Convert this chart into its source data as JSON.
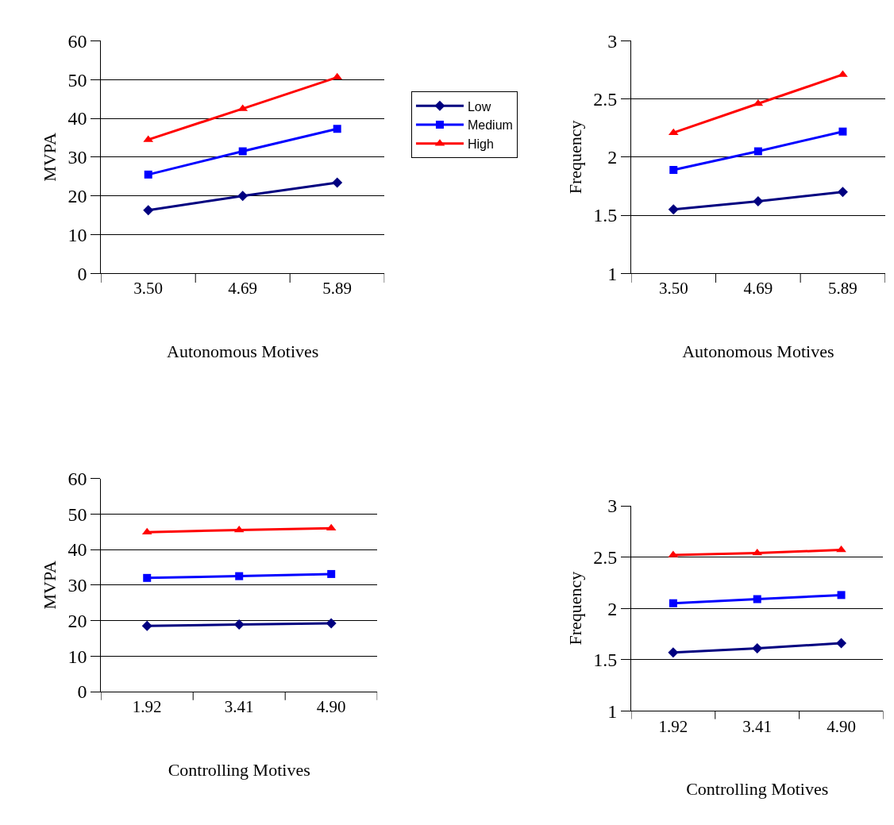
{
  "chart_data": [
    {
      "type": "line",
      "xlabel": "Autonomous Motives",
      "ylabel": "MVPA",
      "categories": [
        "3.50",
        "4.69",
        "5.89"
      ],
      "ylim": [
        0,
        60
      ],
      "yticks": [
        0,
        10,
        20,
        30,
        40,
        50,
        60
      ],
      "grid": "y",
      "legend": "right",
      "series": [
        {
          "name": "Low",
          "color": "#000080",
          "marker": "diamond",
          "values": [
            16.3,
            20.0,
            23.4
          ]
        },
        {
          "name": "Medium",
          "color": "#0000ff",
          "marker": "square",
          "values": [
            25.5,
            31.5,
            37.3
          ]
        },
        {
          "name": "High",
          "color": "#ff0000",
          "marker": "triangle",
          "values": [
            34.5,
            42.5,
            50.6
          ]
        }
      ]
    },
    {
      "type": "line",
      "xlabel": "Autonomous Motives",
      "ylabel": "Frequency",
      "categories": [
        "3.50",
        "4.69",
        "5.89"
      ],
      "ylim": [
        1,
        3
      ],
      "yticks": [
        1,
        1.5,
        2,
        2.5,
        3
      ],
      "grid": "y",
      "series": [
        {
          "color": "#000080",
          "marker": "diamond",
          "values": [
            1.55,
            1.62,
            1.7
          ]
        },
        {
          "color": "#0000ff",
          "marker": "square",
          "values": [
            1.89,
            2.05,
            2.22
          ]
        },
        {
          "color": "#ff0000",
          "marker": "triangle",
          "values": [
            2.21,
            2.46,
            2.71
          ]
        }
      ]
    },
    {
      "type": "line",
      "xlabel": "Controlling Motives",
      "ylabel": "MVPA",
      "categories": [
        "1.92",
        "3.41",
        "4.90"
      ],
      "ylim": [
        0,
        60
      ],
      "yticks": [
        0,
        10,
        20,
        30,
        40,
        50,
        60
      ],
      "grid": "y",
      "series": [
        {
          "color": "#000080",
          "marker": "diamond",
          "values": [
            18.5,
            18.9,
            19.2
          ]
        },
        {
          "color": "#0000ff",
          "marker": "square",
          "values": [
            32.0,
            32.5,
            33.1
          ]
        },
        {
          "color": "#ff0000",
          "marker": "triangle",
          "values": [
            44.9,
            45.5,
            46.0
          ]
        }
      ]
    },
    {
      "type": "line",
      "xlabel": "Controlling Motives",
      "ylabel": "Frequency",
      "categories": [
        "1.92",
        "3.41",
        "4.90"
      ],
      "ylim": [
        1,
        3
      ],
      "yticks": [
        1,
        1.5,
        2,
        2.5,
        3
      ],
      "grid": "y",
      "series": [
        {
          "color": "#000080",
          "marker": "diamond",
          "values": [
            1.57,
            1.61,
            1.66
          ]
        },
        {
          "color": "#0000ff",
          "marker": "square",
          "values": [
            2.05,
            2.09,
            2.13
          ]
        },
        {
          "color": "#ff0000",
          "marker": "triangle",
          "values": [
            2.52,
            2.54,
            2.57
          ]
        }
      ]
    }
  ]
}
